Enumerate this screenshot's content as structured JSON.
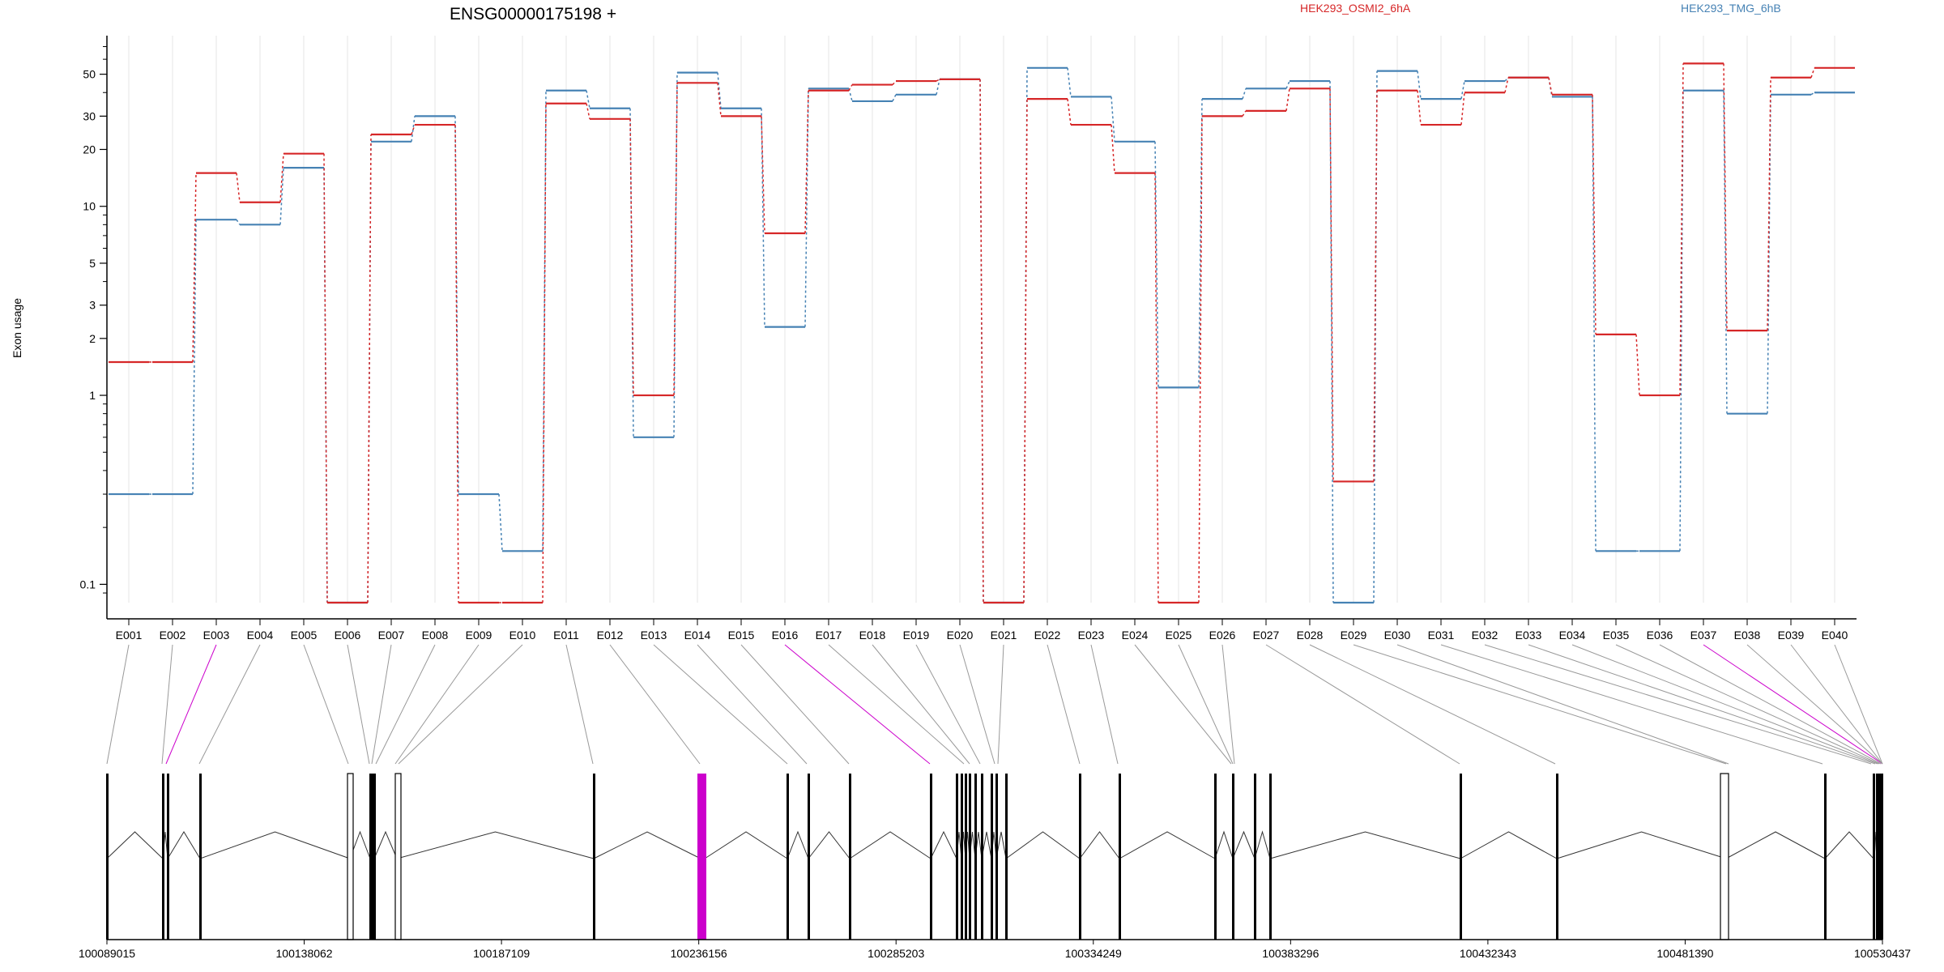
{
  "chart_data": {
    "type": "line",
    "title": "ENSG00000175198 +",
    "ylabel": "Exon usage",
    "xlabel": "",
    "y_scale": "log",
    "ylim": [
      0.08,
      80
    ],
    "y_ticks": [
      0.1,
      1,
      2,
      3,
      5,
      10,
      20,
      30,
      50
    ],
    "y_tick_labels": [
      "0.1",
      "1",
      "2",
      "3",
      "5",
      "10",
      "20",
      "30",
      "50"
    ],
    "categories": [
      "E001",
      "E002",
      "E003",
      "E004",
      "E005",
      "E006",
      "E007",
      "E008",
      "E009",
      "E010",
      "E011",
      "E012",
      "E013",
      "E014",
      "E015",
      "E016",
      "E017",
      "E018",
      "E019",
      "E020",
      "E021",
      "E022",
      "E023",
      "E024",
      "E025",
      "E026",
      "E027",
      "E028",
      "E029",
      "E030",
      "E031",
      "E032",
      "E033",
      "E034",
      "E035",
      "E036",
      "E037",
      "E038",
      "E039",
      "E040"
    ],
    "legend_position": "top-right",
    "grid": true,
    "series": [
      {
        "name": "HEK293_OSMI2_6hA",
        "color": "#d62728",
        "values": [
          1.5,
          1.5,
          15,
          10.5,
          19,
          0.08,
          24,
          27,
          0.08,
          0.08,
          35,
          29,
          1,
          45,
          30,
          7.2,
          41,
          44,
          46,
          47,
          0.08,
          37,
          27,
          15,
          0.08,
          30,
          32,
          42,
          0.35,
          41,
          27,
          40,
          48,
          39,
          2.1,
          1,
          57,
          2.2,
          48,
          54
        ]
      },
      {
        "name": "HEK293_TMG_6hB",
        "color": "#4682b4",
        "values": [
          0.3,
          0.3,
          8.5,
          8,
          16,
          0.08,
          22,
          30,
          0.3,
          0.15,
          41,
          33,
          0.6,
          51,
          33,
          2.3,
          42,
          36,
          39,
          47,
          0.08,
          54,
          38,
          22,
          1.1,
          37,
          42,
          46,
          0.08,
          52,
          37,
          46,
          48,
          38,
          0.15,
          0.15,
          41,
          0.8,
          39,
          40
        ]
      }
    ],
    "genomic_axis": {
      "ticks": [
        "100089015",
        "100138062",
        "100187109",
        "100236156",
        "100285203",
        "100334249",
        "100383296",
        "100432343",
        "100481390",
        "100530437"
      ],
      "range": [
        100089015,
        100530437
      ]
    },
    "highlight_color": "#cc00cc",
    "highlighted_exons": [
      "E003",
      "E016",
      "E037"
    ]
  }
}
